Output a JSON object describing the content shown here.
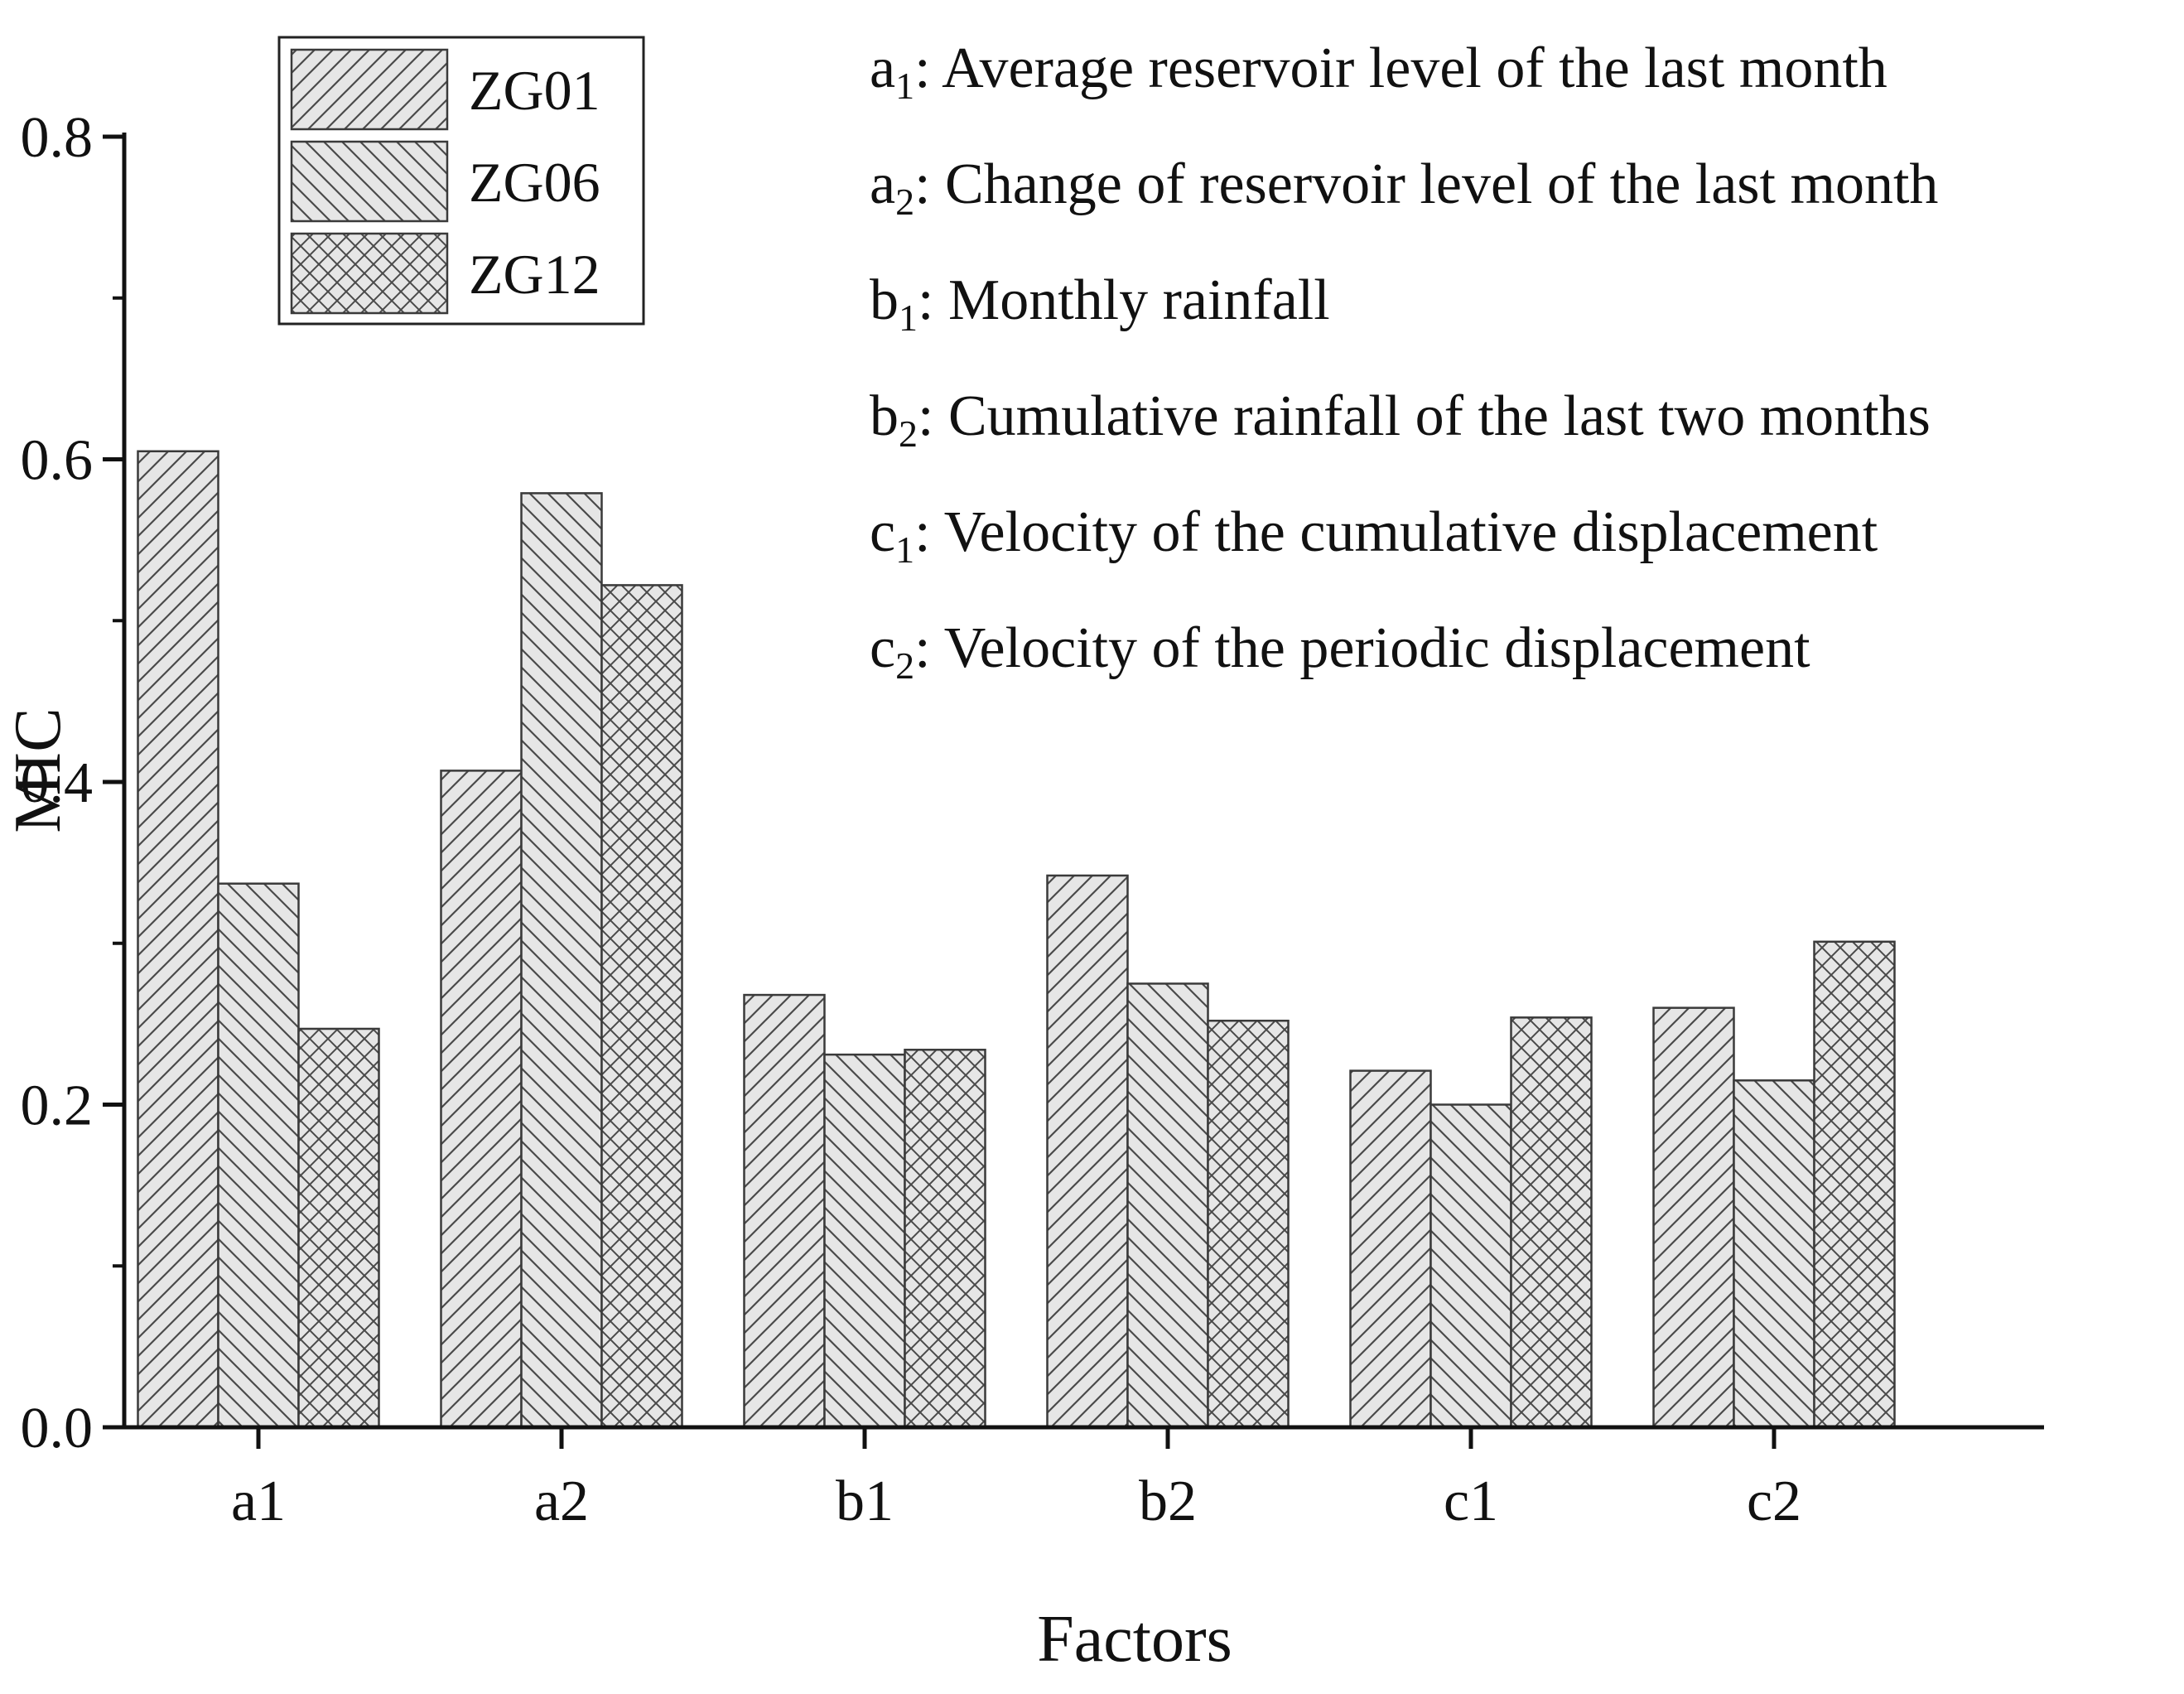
{
  "chart_data": {
    "type": "bar",
    "title": "",
    "xlabel": "Factors",
    "ylabel": "MIC",
    "categories": [
      "a1",
      "a2",
      "b1",
      "b2",
      "c1",
      "c2"
    ],
    "ylim": [
      0,
      0.8
    ],
    "yticks": [
      "0.0",
      "0.2",
      "0.4",
      "0.6",
      "0.8"
    ],
    "grid": false,
    "legend_position": "top-left",
    "series": [
      {
        "name": "ZG01",
        "pattern": "hatch-forward",
        "values": [
          0.605,
          0.407,
          0.268,
          0.342,
          0.221,
          0.26
        ]
      },
      {
        "name": "ZG06",
        "pattern": "hatch-back",
        "values": [
          0.337,
          0.579,
          0.231,
          0.275,
          0.2,
          0.215
        ]
      },
      {
        "name": "ZG12",
        "pattern": "cross-hatch",
        "values": [
          0.247,
          0.522,
          0.234,
          0.252,
          0.254,
          0.301
        ]
      }
    ],
    "annotations": [
      {
        "base": "a",
        "sub": "1",
        "text": ": Average reservoir level of the last month"
      },
      {
        "base": "a",
        "sub": "2",
        "text": ": Change of reservoir level of the last month"
      },
      {
        "base": "b",
        "sub": "1",
        "text": ": Monthly rainfall"
      },
      {
        "base": "b",
        "sub": "2",
        "text": ": Cumulative rainfall of the last two months"
      },
      {
        "base": "c",
        "sub": "1",
        "text": ": Velocity of the cumulative displacement"
      },
      {
        "base": "c",
        "sub": "2",
        "text": ": Velocity of the periodic displacement"
      }
    ]
  },
  "colors": {
    "bar_fill": "#e6e6e6",
    "bar_stroke": "#3a3a3a",
    "hatch": "#4a4a4a",
    "axis": "#111111"
  }
}
